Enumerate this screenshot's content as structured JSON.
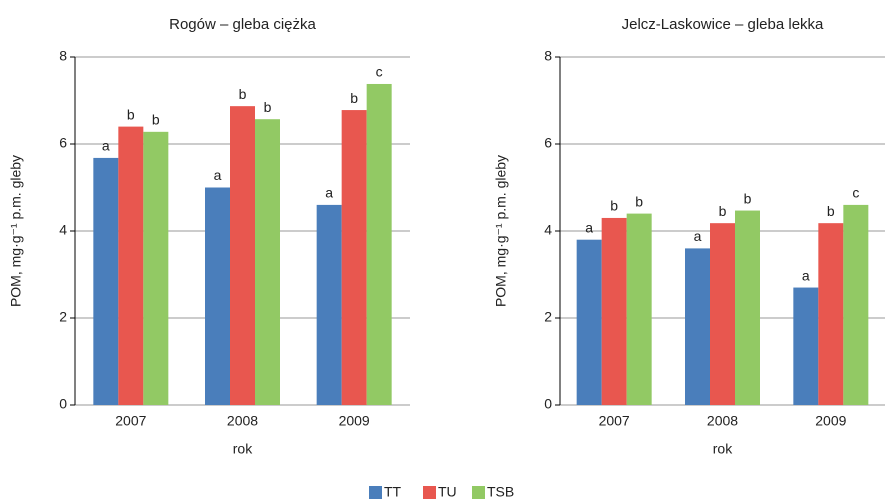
{
  "chart_data": [
    {
      "type": "bar",
      "title": "Rogów – gleba ciężka",
      "x_label": "rok",
      "y_label": "POM, mg·g⁻¹ p.m. gleby",
      "categories": [
        "2007",
        "2008",
        "2009"
      ],
      "series": [
        {
          "name": "TT",
          "color": "#4a7ebb",
          "values": [
            5.68,
            5.0,
            4.6
          ],
          "letters": [
            "a",
            "a",
            "a"
          ]
        },
        {
          "name": "TU",
          "color": "#e8574f",
          "values": [
            6.4,
            6.87,
            6.78
          ],
          "letters": [
            "b",
            "b",
            "b"
          ]
        },
        {
          "name": "TSB",
          "color": "#92c964",
          "values": [
            6.28,
            6.57,
            7.38
          ],
          "letters": [
            "b",
            "b",
            "c"
          ]
        }
      ],
      "ylim": [
        0,
        8
      ],
      "yticks": [
        0,
        2,
        4,
        6,
        8
      ],
      "grid": true
    },
    {
      "type": "bar",
      "title": "Jelcz-Laskowice – gleba lekka",
      "x_label": "rok",
      "y_label": "POM, mg·g⁻¹ p.m. gleby",
      "categories": [
        "2007",
        "2008",
        "2009"
      ],
      "series": [
        {
          "name": "TT",
          "color": "#4a7ebb",
          "values": [
            3.8,
            3.6,
            2.7
          ],
          "letters": [
            "a",
            "a",
            "a"
          ]
        },
        {
          "name": "TU",
          "color": "#e8574f",
          "values": [
            4.3,
            4.18,
            4.18
          ],
          "letters": [
            "b",
            "b",
            "b"
          ]
        },
        {
          "name": "TSB",
          "color": "#92c964",
          "values": [
            4.4,
            4.47,
            4.6
          ],
          "letters": [
            "b",
            "b",
            "c"
          ]
        }
      ],
      "ylim": [
        0,
        8
      ],
      "yticks": [
        0,
        2,
        4,
        6,
        8
      ],
      "grid": true
    }
  ]
}
